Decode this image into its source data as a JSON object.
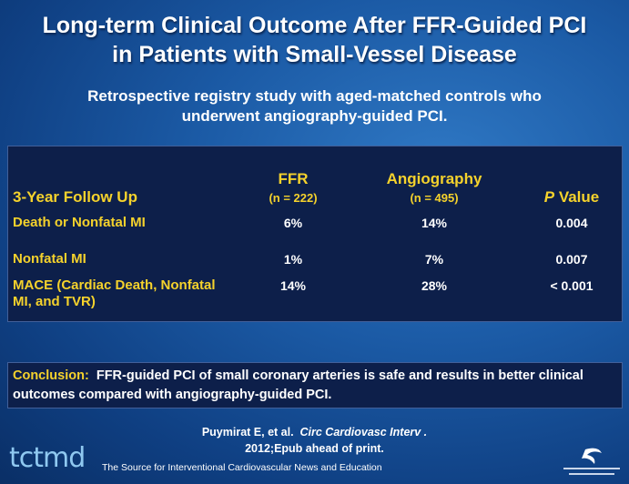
{
  "title": [
    "Long-term Clinical Outcome After FFR-Guided PCI",
    "in Patients with Small-Vessel Disease"
  ],
  "subtitle": [
    "Retrospective registry study with aged-matched controls who",
    "underwent angiography-guided PCI."
  ],
  "table": {
    "header": {
      "label": "3-Year Follow Up",
      "ffr": "FFR",
      "ffr_n": "(n = 222)",
      "angio": "Angiography",
      "angio_n": "(n = 495)",
      "p_italic": "P",
      "p_rest": "Value"
    },
    "rows": [
      [
        "Death or Nonfatal MI",
        "6%",
        "14%",
        "0.004"
      ],
      [
        "Nonfatal MI",
        "1%",
        "7%",
        "0.007"
      ],
      [
        "MACE (Cardiac Death, Nonfatal MI, and TVR)",
        "14%",
        "28%",
        "< 0.001"
      ]
    ]
  },
  "conclusion": {
    "label": "Conclusion:",
    "text": "FFR-guided PCI of small coronary arteries is safe and results in better clinical outcomes compared with angiography-guided PCI."
  },
  "citation": {
    "authors": "Puymirat E, et al.",
    "journal": "Circ Cardiovasc Interv .",
    "detail": "2012;Epub ahead of print."
  },
  "footer": {
    "logo": "tctmd",
    "tagline": "The Source for Interventional Cardiovascular News and Education"
  }
}
